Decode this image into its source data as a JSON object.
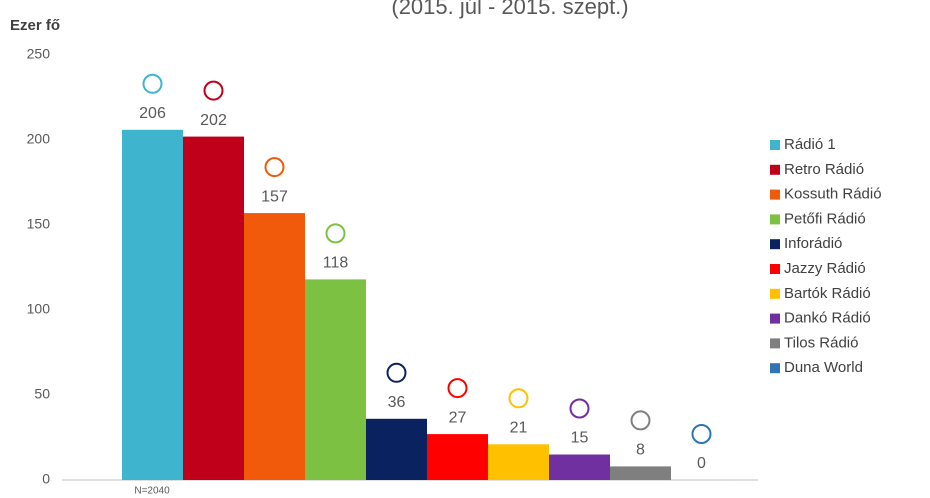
{
  "chart_data": {
    "type": "bar",
    "subtitle": "(2015. júl - 2015. szept.)",
    "y_label": "Ezer fő",
    "note": "N=2040",
    "categories": [
      "Rádió 1",
      "Retro Rádió",
      "Kossuth Rádió",
      "Petőfi Rádió",
      "Inforádió",
      "Jazzy Rádió",
      "Bartók Rádió",
      "Dankó Rádió",
      "Tilos Rádió",
      "Duna World"
    ],
    "values": [
      206,
      202,
      157,
      118,
      36,
      27,
      21,
      15,
      8,
      0
    ],
    "colors": [
      "#3fb4cf",
      "#c0001a",
      "#f05a0a",
      "#7dc142",
      "#0a2260",
      "#ff0000",
      "#ffc000",
      "#7030a0",
      "#7f7f7f",
      "#2e75b6"
    ],
    "ylim": [
      0,
      250
    ],
    "yticks": [
      0,
      50,
      100,
      150,
      200,
      250
    ],
    "grid": false,
    "legend": "right"
  }
}
